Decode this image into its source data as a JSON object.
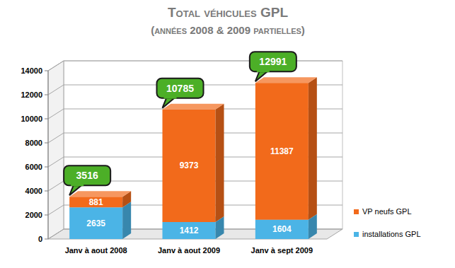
{
  "chart_data": {
    "type": "bar",
    "title": "Total véhicules GPL",
    "subtitle": "(années 2008 & 2009 partielles)",
    "categories": [
      "Janv à aout 2008",
      "Janv à aout 2009",
      "Janv à sept 2009"
    ],
    "series": [
      {
        "name": "installations GPL",
        "color": "#4bb4e6",
        "values": [
          2635,
          1412,
          1604
        ]
      },
      {
        "name": "VP neufs GPL",
        "color": "#f26a1b",
        "values": [
          881,
          9373,
          11387
        ]
      }
    ],
    "totals": [
      3516,
      10785,
      12991
    ],
    "ylim": [
      0,
      14000
    ],
    "yticks": [
      0,
      2000,
      4000,
      6000,
      8000,
      10000,
      12000,
      14000
    ],
    "grid": true,
    "stacked": true,
    "data_labels": true,
    "legend": "lower right"
  }
}
